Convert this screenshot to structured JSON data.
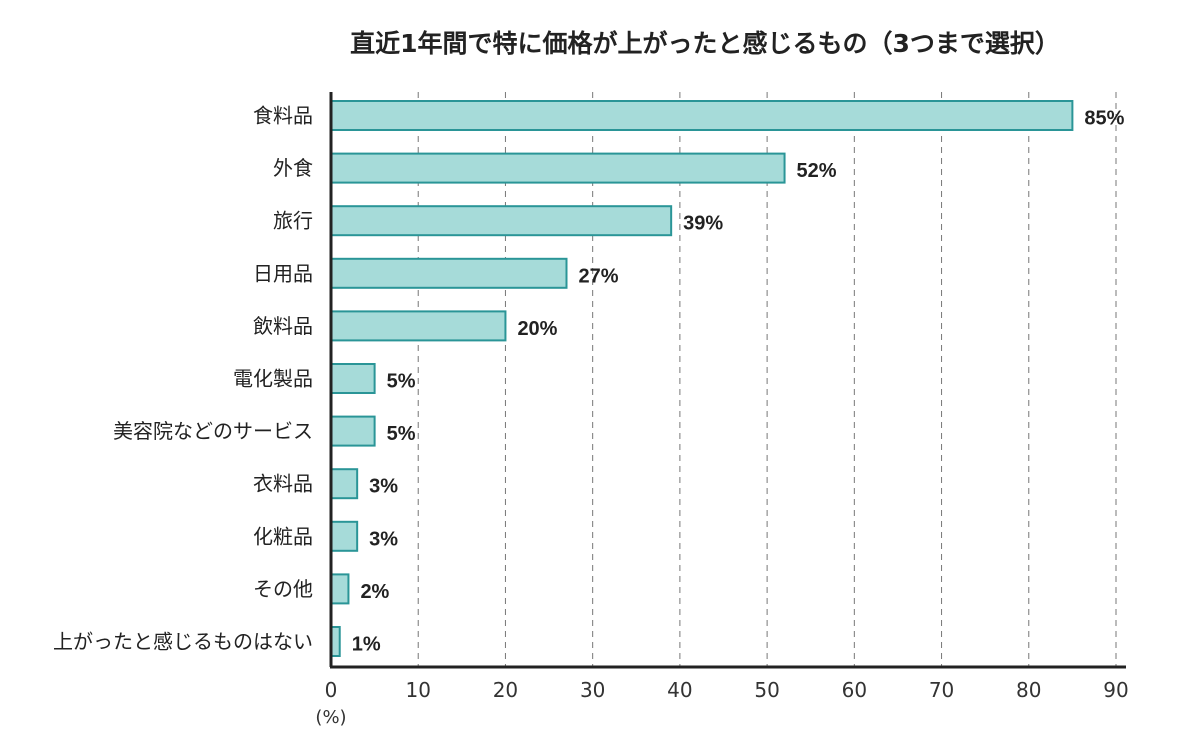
{
  "chart_data": {
    "type": "bar",
    "orientation": "horizontal",
    "title": "直近1年間で特に価格が上がったと感じるもの（3つまで選択）",
    "categories": [
      "食料品",
      "外食",
      "旅行",
      "日用品",
      "飲料品",
      "電化製品",
      "美容院などのサービス",
      "衣料品",
      "化粧品",
      "その他",
      "上がったと感じるものはない"
    ],
    "values": [
      85,
      52,
      39,
      27,
      20,
      5,
      5,
      3,
      3,
      2,
      1
    ],
    "value_labels": [
      "85%",
      "52%",
      "39%",
      "27%",
      "20%",
      "5%",
      "5%",
      "3%",
      "3%",
      "2%",
      "1%"
    ],
    "xlim": [
      0,
      90
    ],
    "xticks": [
      "0",
      "10",
      "20",
      "30",
      "40",
      "50",
      "60",
      "70",
      "80",
      "90"
    ],
    "xunit": "(%)",
    "grid": "vertical dashed",
    "colors": {
      "bar_fill": "#a6dbd9",
      "bar_stroke": "#2a9597",
      "axis": "#222222",
      "grid": "#777777"
    }
  }
}
